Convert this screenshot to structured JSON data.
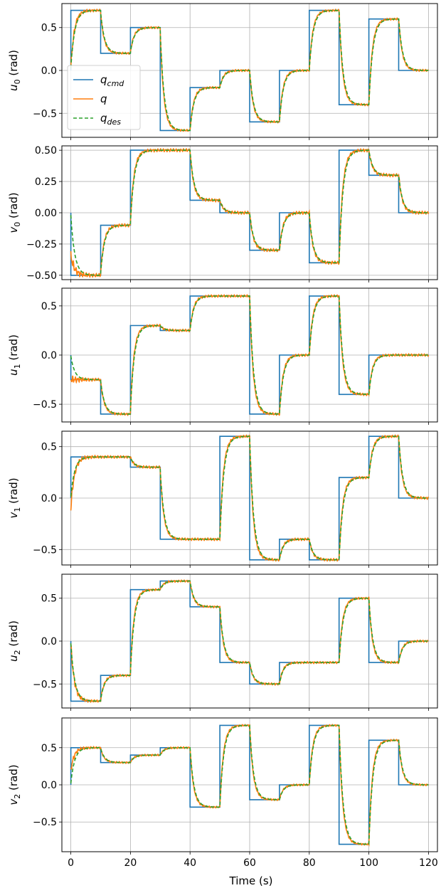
{
  "figure": {
    "xlabel": "Time (s)",
    "x_ticks": [
      0,
      20,
      40,
      60,
      80,
      100,
      120
    ],
    "xlim": [
      -3,
      123
    ]
  },
  "colors": {
    "cmd": "#1f77b4",
    "q": "#ff7f0e",
    "des": "#2ca02c",
    "grid": "#b0b0b0"
  },
  "legend": {
    "placement": "middle-left of first panel",
    "entries": [
      {
        "key": "cmd",
        "base": "q",
        "sub": "cmd"
      },
      {
        "key": "q",
        "base": "q",
        "sub": ""
      },
      {
        "key": "des",
        "base": "q",
        "sub": "des"
      }
    ]
  },
  "chart_data": [
    {
      "type": "line",
      "ylabel": {
        "base": "u",
        "sub": "0",
        "unit": " (rad)"
      },
      "ylim": [
        -0.78,
        0.78
      ],
      "yticks": [
        0.5,
        0.0,
        -0.5
      ],
      "yticklabels": [
        "0.5",
        "0.0",
        "−0.5"
      ],
      "initial": 0.0,
      "steps": [
        [
          0,
          10,
          0.7
        ],
        [
          10,
          20,
          0.2
        ],
        [
          20,
          30,
          0.5
        ],
        [
          30,
          40,
          -0.7
        ],
        [
          40,
          50,
          -0.2
        ],
        [
          50,
          60,
          0.0
        ],
        [
          60,
          70,
          -0.6
        ],
        [
          70,
          80,
          0.0
        ],
        [
          80,
          90,
          0.7
        ],
        [
          90,
          100,
          -0.4
        ],
        [
          100,
          110,
          0.6
        ],
        [
          110,
          120,
          0.0
        ]
      ],
      "series": [
        {
          "key": "cmd",
          "name": "q_cmd"
        },
        {
          "key": "q",
          "name": "q"
        },
        {
          "key": "des",
          "name": "q_des"
        }
      ]
    },
    {
      "type": "line",
      "ylabel": {
        "base": "v",
        "sub": "0",
        "unit": " (rad)"
      },
      "ylim": [
        -0.535,
        0.535
      ],
      "yticks": [
        0.5,
        0.25,
        0.0,
        -0.25,
        -0.5
      ],
      "yticklabels": [
        "0.50",
        "0.25",
        "0.00",
        "−0.25",
        "−0.50"
      ],
      "initial": 0.0,
      "q_start": -0.33,
      "steps": [
        [
          0,
          10,
          -0.5
        ],
        [
          10,
          20,
          -0.1
        ],
        [
          20,
          30,
          0.5
        ],
        [
          30,
          40,
          0.5
        ],
        [
          40,
          50,
          0.1
        ],
        [
          50,
          60,
          0.0
        ],
        [
          60,
          70,
          -0.3
        ],
        [
          70,
          80,
          0.0
        ],
        [
          80,
          90,
          -0.4
        ],
        [
          90,
          100,
          0.5
        ],
        [
          100,
          110,
          0.3
        ],
        [
          110,
          120,
          0.0
        ]
      ],
      "series": [
        {
          "key": "cmd",
          "name": "q_cmd"
        },
        {
          "key": "q",
          "name": "q"
        },
        {
          "key": "des",
          "name": "q_des"
        }
      ]
    },
    {
      "type": "line",
      "ylabel": {
        "base": "u",
        "sub": "1",
        "unit": " (rad)"
      },
      "ylim": [
        -0.68,
        0.68
      ],
      "yticks": [
        0.5,
        0.0,
        -0.5
      ],
      "yticklabels": [
        "0.5",
        "0.0",
        "−0.5"
      ],
      "initial": 0.0,
      "q_start": -0.25,
      "steps": [
        [
          0,
          10,
          -0.25
        ],
        [
          10,
          20,
          -0.6
        ],
        [
          20,
          30,
          0.3
        ],
        [
          30,
          40,
          0.25
        ],
        [
          40,
          50,
          0.6
        ],
        [
          50,
          60,
          0.6
        ],
        [
          60,
          70,
          -0.6
        ],
        [
          70,
          80,
          0.0
        ],
        [
          80,
          90,
          0.6
        ],
        [
          90,
          100,
          -0.4
        ],
        [
          100,
          110,
          0.0
        ],
        [
          110,
          120,
          0.0
        ]
      ],
      "series": [
        {
          "key": "cmd",
          "name": "q_cmd"
        },
        {
          "key": "q",
          "name": "q"
        },
        {
          "key": "des",
          "name": "q_des"
        }
      ]
    },
    {
      "type": "line",
      "ylabel": {
        "base": "v",
        "sub": "1",
        "unit": " (rad)"
      },
      "ylim": [
        -0.65,
        0.65
      ],
      "yticks": [
        0.5,
        0.0,
        -0.5
      ],
      "yticklabels": [
        "0.5",
        "0.0",
        "−0.5"
      ],
      "initial": 0.0,
      "q_start": -0.13,
      "steps": [
        [
          0,
          10,
          0.4
        ],
        [
          10,
          20,
          0.4
        ],
        [
          20,
          30,
          0.3
        ],
        [
          30,
          40,
          -0.4
        ],
        [
          40,
          50,
          -0.4
        ],
        [
          50,
          60,
          0.6
        ],
        [
          60,
          70,
          -0.6
        ],
        [
          70,
          80,
          -0.4
        ],
        [
          80,
          90,
          -0.6
        ],
        [
          90,
          100,
          0.2
        ],
        [
          100,
          110,
          0.6
        ],
        [
          110,
          120,
          0.0
        ]
      ],
      "series": [
        {
          "key": "cmd",
          "name": "q_cmd"
        },
        {
          "key": "q",
          "name": "q"
        },
        {
          "key": "des",
          "name": "q_des"
        }
      ]
    },
    {
      "type": "line",
      "ylabel": {
        "base": "u",
        "sub": "2",
        "unit": " (rad)"
      },
      "ylim": [
        -0.78,
        0.78
      ],
      "yticks": [
        0.5,
        0.0,
        -0.5
      ],
      "yticklabels": [
        "0.5",
        "0.0",
        "−0.5"
      ],
      "initial": 0.0,
      "q_start": 0.0,
      "steps": [
        [
          0,
          10,
          -0.7
        ],
        [
          10,
          20,
          -0.4
        ],
        [
          20,
          30,
          0.6
        ],
        [
          30,
          40,
          0.7
        ],
        [
          40,
          50,
          0.4
        ],
        [
          50,
          60,
          -0.25
        ],
        [
          60,
          70,
          -0.5
        ],
        [
          70,
          80,
          -0.25
        ],
        [
          80,
          90,
          -0.25
        ],
        [
          90,
          100,
          0.5
        ],
        [
          100,
          110,
          -0.25
        ],
        [
          110,
          120,
          0.0
        ]
      ],
      "series": [
        {
          "key": "cmd",
          "name": "q_cmd"
        },
        {
          "key": "q",
          "name": "q"
        },
        {
          "key": "des",
          "name": "q_des"
        }
      ]
    },
    {
      "type": "line",
      "ylabel": {
        "base": "v",
        "sub": "2",
        "unit": " (rad)"
      },
      "ylim": [
        -0.9,
        0.9
      ],
      "yticks": [
        0.5,
        0.0,
        -0.5
      ],
      "yticklabels": [
        "0.5",
        "0.0",
        "−0.5"
      ],
      "initial": 0.0,
      "q_start": 0.18,
      "steps": [
        [
          0,
          10,
          0.5
        ],
        [
          10,
          20,
          0.3
        ],
        [
          20,
          30,
          0.4
        ],
        [
          30,
          40,
          0.5
        ],
        [
          40,
          50,
          -0.3
        ],
        [
          50,
          60,
          0.8
        ],
        [
          60,
          70,
          -0.2
        ],
        [
          70,
          80,
          0.0
        ],
        [
          80,
          90,
          0.8
        ],
        [
          90,
          100,
          -0.8
        ],
        [
          100,
          110,
          0.6
        ],
        [
          110,
          120,
          0.0
        ]
      ],
      "series": [
        {
          "key": "cmd",
          "name": "q_cmd"
        },
        {
          "key": "q",
          "name": "q"
        },
        {
          "key": "des",
          "name": "q_des"
        }
      ]
    }
  ]
}
